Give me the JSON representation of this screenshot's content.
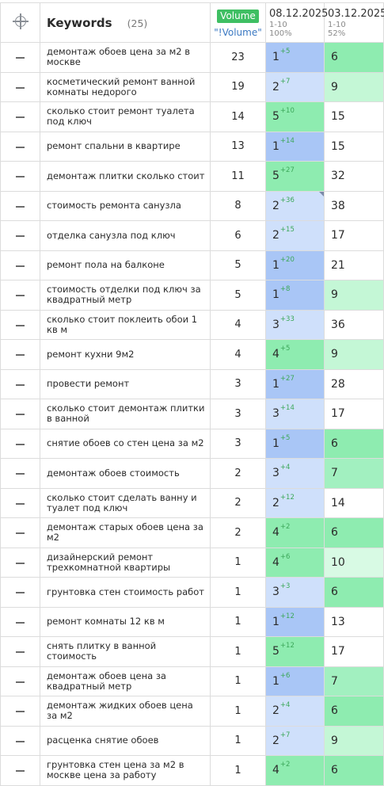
{
  "header": {
    "keywords_label": "Keywords",
    "keywords_count": "(25)",
    "volume_badge": "Volume",
    "volume_sub": "\"!Volume\"",
    "dates": [
      {
        "date": "08.12.2025",
        "range": "1-10",
        "percent": "100%"
      },
      {
        "date": "03.12.2025",
        "range": "1-10",
        "percent": "52%"
      }
    ]
  },
  "colors": {
    "blue": "#a9c6f6",
    "light_blue": "#cfe0fb",
    "green": "#8eecb0",
    "light_green": "#c4f7d6",
    "volume_badge": "#3fbf63",
    "volume_sub": "#3a78c2",
    "delta": "#3ca85a"
  },
  "rows": [
    {
      "keyword": "демонтаж обоев цена за м2 в москве",
      "volume": "23",
      "p1": "1",
      "d1": "+5",
      "p1_bg": "blue",
      "p2": "6",
      "p2_bg": "green"
    },
    {
      "keyword": "косметический ремонт ванной комнаты недорого",
      "volume": "19",
      "p1": "2",
      "d1": "+7",
      "p1_bg": "lblue",
      "p2": "9",
      "p2_bg": "lgreen"
    },
    {
      "keyword": "сколько стоит ремонт туалета под ключ",
      "volume": "14",
      "p1": "5",
      "d1": "+10",
      "p1_bg": "green",
      "p2": "15",
      "p2_bg": "white"
    },
    {
      "keyword": "ремонт спальни в квартире",
      "volume": "13",
      "p1": "1",
      "d1": "+14",
      "p1_bg": "blue",
      "p2": "15",
      "p2_bg": "white"
    },
    {
      "keyword": "демонтаж плитки сколько стоит",
      "volume": "11",
      "p1": "5",
      "d1": "+27",
      "p1_bg": "green",
      "p2": "32",
      "p2_bg": "white"
    },
    {
      "keyword": "стоимость ремонта санузла",
      "volume": "8",
      "p1": "2",
      "d1": "+36",
      "p1_bg": "lblue",
      "p2": "38",
      "p2_bg": "white",
      "corner": true
    },
    {
      "keyword": "отделка санузла под ключ",
      "volume": "6",
      "p1": "2",
      "d1": "+15",
      "p1_bg": "lblue",
      "p2": "17",
      "p2_bg": "white"
    },
    {
      "keyword": "ремонт пола на балконе",
      "volume": "5",
      "p1": "1",
      "d1": "+20",
      "p1_bg": "blue",
      "p2": "21",
      "p2_bg": "white"
    },
    {
      "keyword": "стоимость отделки под ключ за квадратный метр",
      "volume": "5",
      "p1": "1",
      "d1": "+8",
      "p1_bg": "blue",
      "p2": "9",
      "p2_bg": "lgreen"
    },
    {
      "keyword": "сколько стоит поклеить обои 1 кв м",
      "volume": "4",
      "p1": "3",
      "d1": "+33",
      "p1_bg": "lblue",
      "p2": "36",
      "p2_bg": "white"
    },
    {
      "keyword": "ремонт кухни 9м2",
      "volume": "4",
      "p1": "4",
      "d1": "+5",
      "p1_bg": "green",
      "p2": "9",
      "p2_bg": "lgreen"
    },
    {
      "keyword": "провести ремонт",
      "volume": "3",
      "p1": "1",
      "d1": "+27",
      "p1_bg": "blue",
      "p2": "28",
      "p2_bg": "white"
    },
    {
      "keyword": "сколько стоит демонтаж плитки в ванной",
      "volume": "3",
      "p1": "3",
      "d1": "+14",
      "p1_bg": "lblue",
      "p2": "17",
      "p2_bg": "white"
    },
    {
      "keyword": "снятие обоев со стен цена за м2",
      "volume": "3",
      "p1": "1",
      "d1": "+5",
      "p1_bg": "blue",
      "p2": "6",
      "p2_bg": "green"
    },
    {
      "keyword": "демонтаж обоев стоимость",
      "volume": "2",
      "p1": "3",
      "d1": "+4",
      "p1_bg": "lblue",
      "p2": "7",
      "p2_bg": "green2"
    },
    {
      "keyword": "сколько стоит сделать ванну и туалет под ключ",
      "volume": "2",
      "p1": "2",
      "d1": "+12",
      "p1_bg": "lblue",
      "p2": "14",
      "p2_bg": "white"
    },
    {
      "keyword": "демонтаж старых обоев цена за м2",
      "volume": "2",
      "p1": "4",
      "d1": "+2",
      "p1_bg": "green",
      "p2": "6",
      "p2_bg": "green"
    },
    {
      "keyword": "дизайнерский ремонт трехкомнатной квартиры",
      "volume": "1",
      "p1": "4",
      "d1": "+6",
      "p1_bg": "green",
      "p2": "10",
      "p2_bg": "pale"
    },
    {
      "keyword": "грунтовка стен стоимость работ",
      "volume": "1",
      "p1": "3",
      "d1": "+3",
      "p1_bg": "lblue",
      "p2": "6",
      "p2_bg": "green"
    },
    {
      "keyword": "ремонт комнаты 12 кв м",
      "volume": "1",
      "p1": "1",
      "d1": "+12",
      "p1_bg": "blue",
      "p2": "13",
      "p2_bg": "white"
    },
    {
      "keyword": "снять плитку в ванной стоимость",
      "volume": "1",
      "p1": "5",
      "d1": "+12",
      "p1_bg": "green",
      "p2": "17",
      "p2_bg": "white"
    },
    {
      "keyword": "демонтаж обоев цена за квадратный метр",
      "volume": "1",
      "p1": "1",
      "d1": "+6",
      "p1_bg": "blue",
      "p2": "7",
      "p2_bg": "green2"
    },
    {
      "keyword": "демонтаж жидких обоев цена за м2",
      "volume": "1",
      "p1": "2",
      "d1": "+4",
      "p1_bg": "lblue",
      "p2": "6",
      "p2_bg": "green"
    },
    {
      "keyword": "расценка снятие обоев",
      "volume": "1",
      "p1": "2",
      "d1": "+7",
      "p1_bg": "lblue",
      "p2": "9",
      "p2_bg": "lgreen"
    },
    {
      "keyword": "грунтовка стен цена за м2 в москве цена за работу",
      "volume": "1",
      "p1": "4",
      "d1": "+2",
      "p1_bg": "green",
      "p2": "6",
      "p2_bg": "green"
    }
  ]
}
